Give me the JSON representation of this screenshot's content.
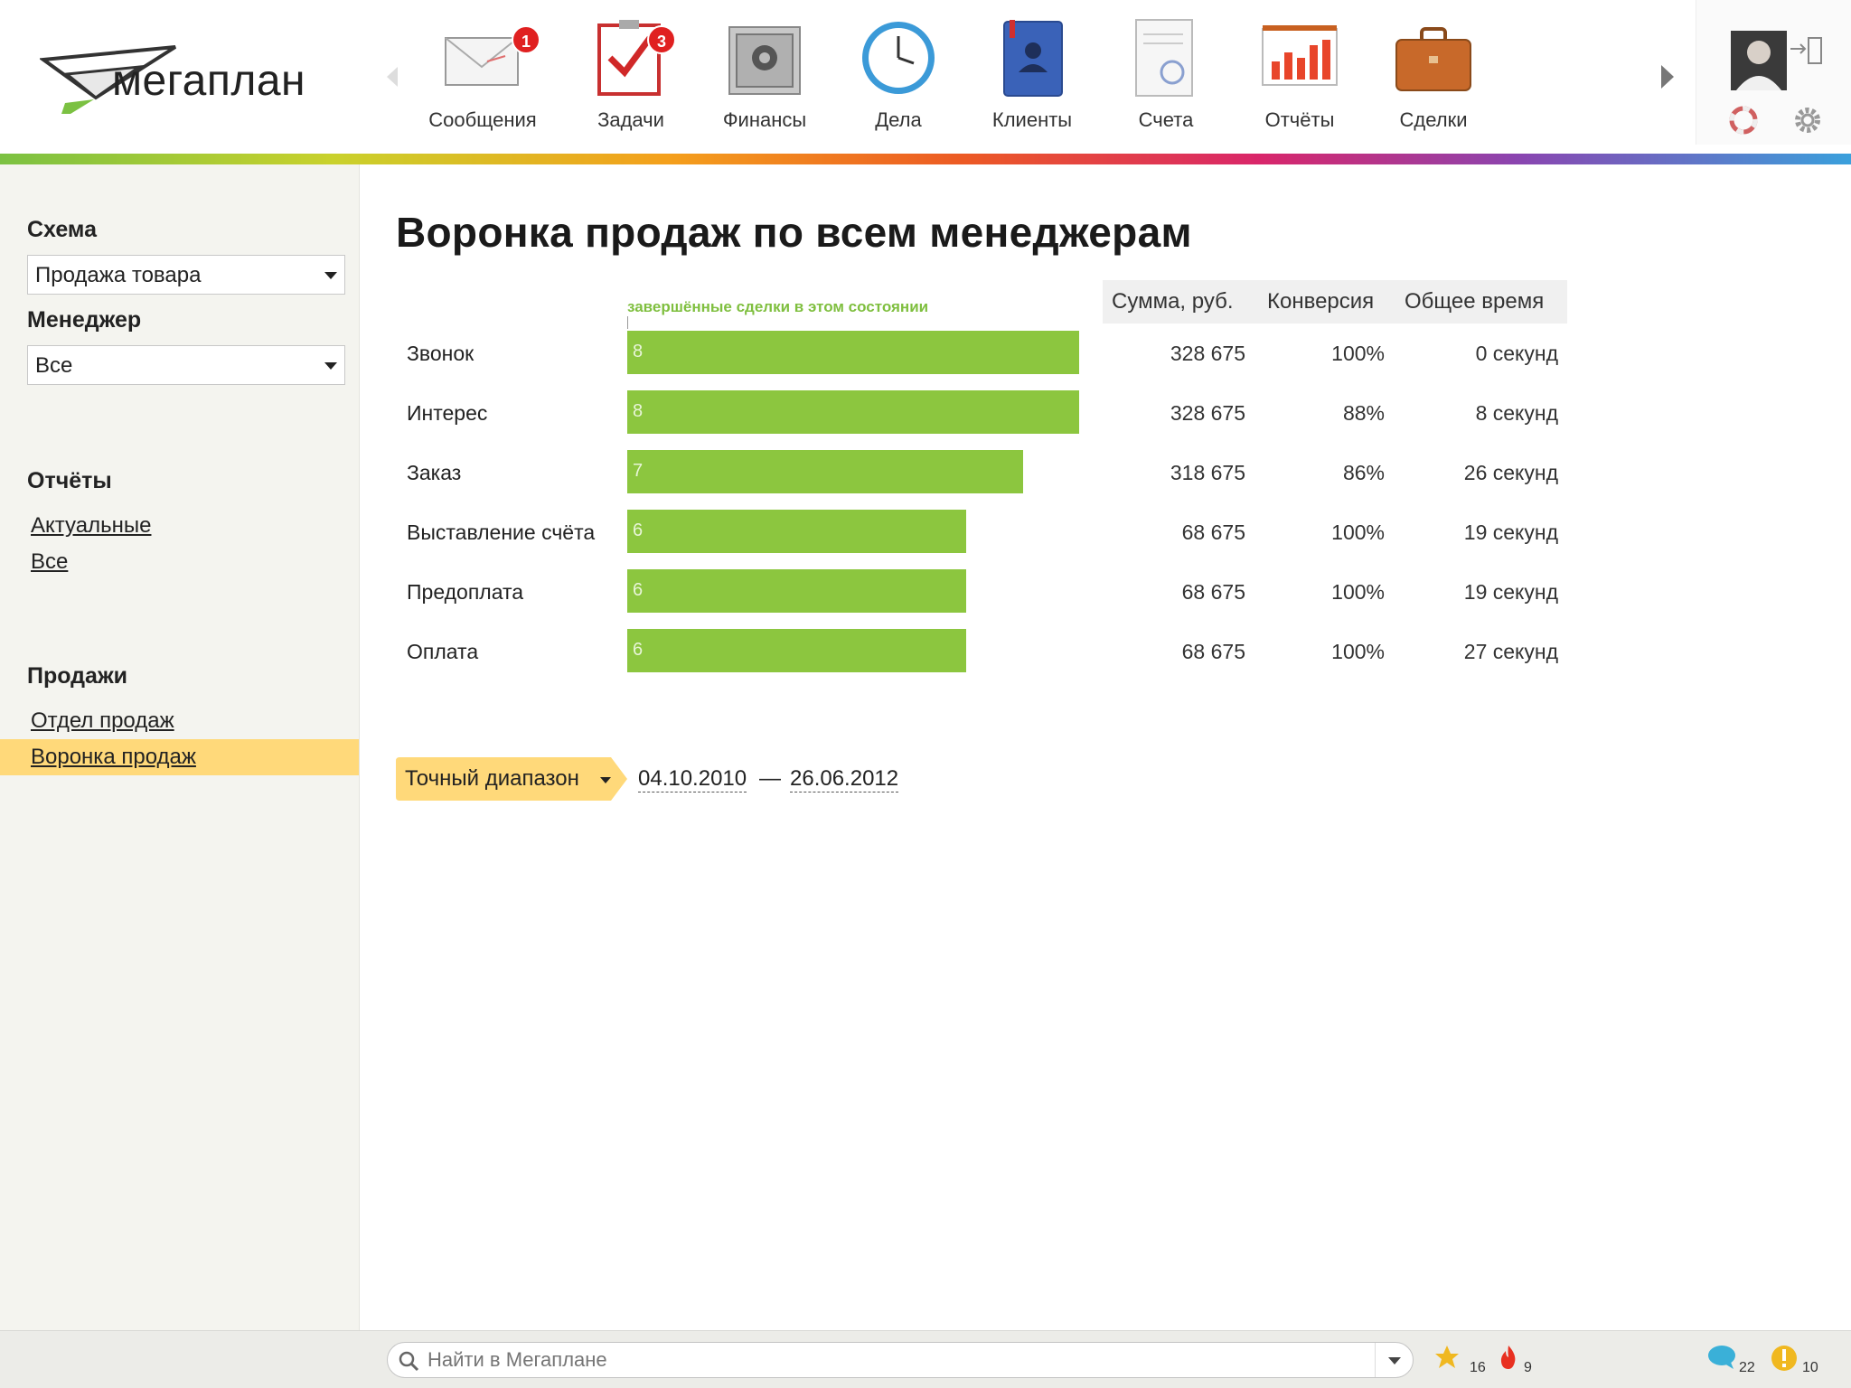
{
  "app": {
    "logo_text": "мегаплан"
  },
  "modules": [
    {
      "label": "Сообщения",
      "icon": "envelope-icon",
      "badge": "1"
    },
    {
      "label": "Задачи",
      "icon": "checklist-icon",
      "badge": "3"
    },
    {
      "label": "Финансы",
      "icon": "safe-icon",
      "badge": ""
    },
    {
      "label": "Дела",
      "icon": "clock-icon",
      "badge": ""
    },
    {
      "label": "Клиенты",
      "icon": "contacts-book-icon",
      "badge": ""
    },
    {
      "label": "Счета",
      "icon": "invoice-icon",
      "badge": ""
    },
    {
      "label": "Отчёты",
      "icon": "chart-board-icon",
      "badge": ""
    },
    {
      "label": "Сделки",
      "icon": "briefcase-icon",
      "badge": ""
    }
  ],
  "sidebar": {
    "schema_heading": "Схема",
    "schema_value": "Продажа товара",
    "manager_heading": "Менеджер",
    "manager_value": "Все",
    "reports_heading": "Отчёты",
    "reports_links": [
      "Актуальные",
      "Все"
    ],
    "sales_heading": "Продажи",
    "sales_links": [
      "Отдел продаж",
      "Воронка продаж"
    ],
    "active_link": "Воронка продаж"
  },
  "main": {
    "title": "Воронка продаж по всем менеджерам",
    "funnel_caption": "завершённые сделки в этом состоянии",
    "columns": [
      "Сумма, руб.",
      "Конверсия",
      "Общее время"
    ],
    "range_label": "Точный диапазон",
    "date_from": "04.10.2010",
    "date_sep": "—",
    "date_to": "26.06.2012"
  },
  "chart_data": {
    "type": "bar",
    "categories": [
      "Звонок",
      "Интерес",
      "Заказ",
      "Выставление счёта",
      "Предоплата",
      "Оплата"
    ],
    "values": [
      8,
      8,
      7,
      6,
      6,
      6
    ],
    "max": 8,
    "sums": [
      "328 675",
      "328 675",
      "318 675",
      "68 675",
      "68 675",
      "68 675"
    ],
    "conversion": [
      "100%",
      "88%",
      "86%",
      "100%",
      "100%",
      "100%"
    ],
    "time": [
      "0 секунд",
      "8 секунд",
      "26 секунд",
      "19 секунд",
      "19 секунд",
      "27 секунд"
    ],
    "bar_color": "#8cc63f"
  },
  "footer": {
    "search_placeholder": "Найти в Мегаплане",
    "favorites_count": "16",
    "hot_count": "9",
    "comments_count": "22",
    "warnings_count": "10"
  }
}
